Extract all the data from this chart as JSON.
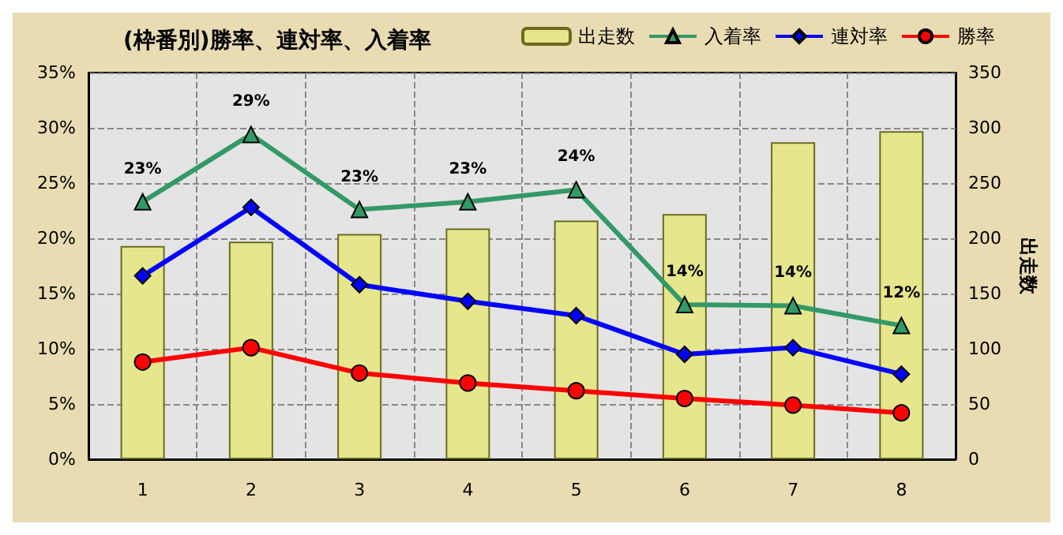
{
  "chart_data": {
    "type": "line",
    "title": "(枠番別)勝率、連対率、入着率",
    "categories": [
      "1",
      "2",
      "3",
      "4",
      "5",
      "6",
      "7",
      "8"
    ],
    "series": [
      {
        "name": "出走数",
        "type": "bar",
        "axis": "y2",
        "color": "#e6e68c",
        "values": [
          193,
          197,
          204,
          209,
          216,
          222,
          287,
          297
        ]
      },
      {
        "name": "入着率",
        "color": "#339966",
        "marker": "triangle",
        "values": [
          23.3,
          29.4,
          22.6,
          23.3,
          24.4,
          14.0,
          13.9,
          12.1
        ],
        "value_labels": [
          "23%",
          "29%",
          "23%",
          "23%",
          "24%",
          "14%",
          "14%",
          "12%"
        ]
      },
      {
        "name": "連対率",
        "color": "#0000ff",
        "marker": "diamond",
        "values": [
          16.6,
          22.8,
          15.8,
          14.3,
          13.0,
          9.5,
          10.1,
          7.7
        ]
      },
      {
        "name": "勝率",
        "color": "#ff0000",
        "marker": "circle",
        "values": [
          8.8,
          10.1,
          7.8,
          6.9,
          6.2,
          5.5,
          4.9,
          4.2
        ]
      }
    ],
    "ylim": [
      0,
      35
    ],
    "yticks": [
      {
        "value": 0,
        "label": "0%"
      },
      {
        "value": 5,
        "label": "5%"
      },
      {
        "value": 10,
        "label": "10%"
      },
      {
        "value": 15,
        "label": "15%"
      },
      {
        "value": 20,
        "label": "20%"
      },
      {
        "value": 25,
        "label": "25%"
      },
      {
        "value": 30,
        "label": "30%"
      },
      {
        "value": 35,
        "label": "35%"
      }
    ],
    "y2label": "出走数",
    "y2lim": [
      0,
      350
    ],
    "y2ticks": [
      0,
      50,
      100,
      150,
      200,
      250,
      300,
      350
    ],
    "grid": true,
    "legend": "top right"
  }
}
